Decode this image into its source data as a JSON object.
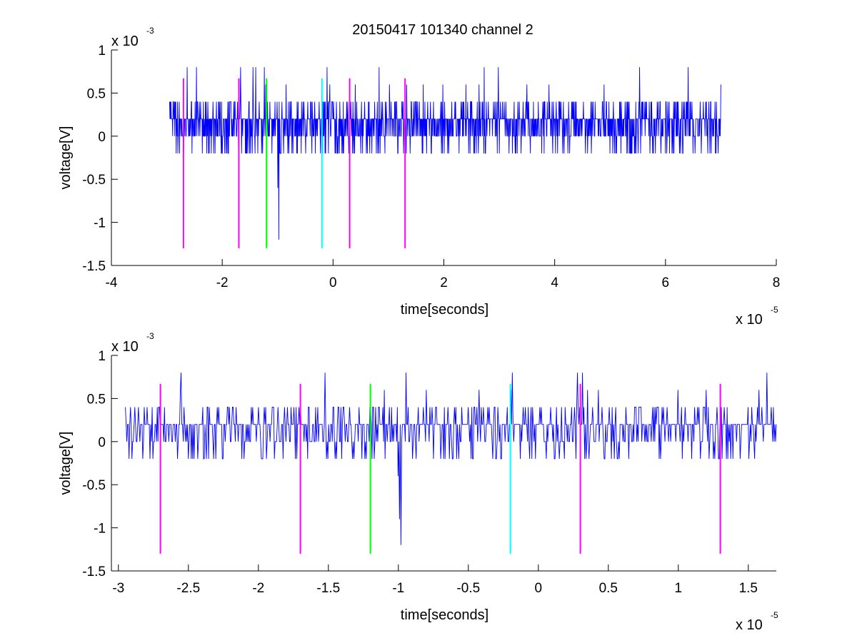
{
  "figure_title": "20150417 101340 channel 2",
  "chart_data": [
    {
      "type": "line",
      "title": "20150417 101340 channel 2",
      "xlabel": "time[seconds]",
      "ylabel": "voltage[V]",
      "x_exponent_label": {
        "base": "x 10",
        "exp": "-5"
      },
      "y_exponent_label": {
        "base": "x 10",
        "exp": "-3"
      },
      "x_ticks": [
        "-4",
        "-2",
        "0",
        "2",
        "4",
        "6",
        "8"
      ],
      "y_ticks": [
        "1",
        "0.5",
        "0",
        "-0.5",
        "-1",
        "-1.5"
      ],
      "xlim": [
        -4e-05,
        8e-05
      ],
      "ylim": [
        -0.0015,
        0.001
      ],
      "grid": false,
      "signal": {
        "color": "#0000ff",
        "x_start": -2.95e-05,
        "x_end": 7e-05,
        "baseline": 0.0002,
        "levels": [
          -0.0002,
          0,
          0.0002,
          0.0004,
          0.0006
        ],
        "spikes": [
          {
            "x": -1.2e-05,
            "y": 0.0006
          },
          {
            "x": -1e-05,
            "y": -0.0006
          },
          {
            "x": -9.8e-06,
            "y": -0.0012
          },
          {
            "x": -8.5e-06,
            "y": 0.0006
          },
          {
            "x": 2.4e-05,
            "y": 0.0006
          },
          {
            "x": 7e-05,
            "y": 0.0006
          }
        ]
      },
      "markers": [
        {
          "x": -2.7e-05,
          "color": "#ff00ff",
          "y_from": -0.0013,
          "y_to": 0.00067
        },
        {
          "x": -1.7e-05,
          "color": "#ff00ff",
          "y_from": -0.0013,
          "y_to": 0.00067
        },
        {
          "x": -1.2e-05,
          "color": "#00ff00",
          "y_from": -0.0013,
          "y_to": 0.00067
        },
        {
          "x": -2e-06,
          "color": "#00ffff",
          "y_from": -0.0013,
          "y_to": 0.00067
        },
        {
          "x": 3e-06,
          "color": "#ff00ff",
          "y_from": -0.0013,
          "y_to": 0.00067
        },
        {
          "x": 1.3e-05,
          "color": "#ff00ff",
          "y_from": -0.0013,
          "y_to": 0.00067
        }
      ]
    },
    {
      "type": "line",
      "title": "",
      "xlabel": "time[seconds]",
      "ylabel": "voltage[V]",
      "x_exponent_label": {
        "base": "x 10",
        "exp": "-5"
      },
      "y_exponent_label": {
        "base": "x 10",
        "exp": "-3"
      },
      "x_ticks": [
        "-3",
        "-2.5",
        "-2",
        "-1.5",
        "-1",
        "-0.5",
        "0",
        "0.5",
        "1",
        "1.5"
      ],
      "y_ticks": [
        "1",
        "0.5",
        "0",
        "-0.5",
        "-1",
        "-1.5"
      ],
      "xlim": [
        -3.05e-05,
        1.7e-05
      ],
      "ylim": [
        -0.0015,
        0.001
      ],
      "grid": false,
      "signal": {
        "color": "#0000ff",
        "x_start": -2.95e-05,
        "x_end": 1.7e-05,
        "baseline": 0.0002,
        "levels": [
          -0.0002,
          0,
          0.0002,
          0.0004,
          0.0006
        ],
        "spikes": [
          {
            "x": -1.2e-05,
            "y": 0.0004
          },
          {
            "x": -1.1e-05,
            "y": 0.0006
          },
          {
            "x": -1e-05,
            "y": -0.0004
          },
          {
            "x": -9.9e-06,
            "y": -0.0009
          },
          {
            "x": -9.8e-06,
            "y": -0.0012
          },
          {
            "x": -8e-06,
            "y": 0.0006
          }
        ]
      },
      "markers": [
        {
          "x": -2.7e-05,
          "color": "#ff00ff",
          "y_from": -0.0013,
          "y_to": 0.00067
        },
        {
          "x": -1.7e-05,
          "color": "#ff00ff",
          "y_from": -0.0013,
          "y_to": 0.00067
        },
        {
          "x": -1.2e-05,
          "color": "#00ff00",
          "y_from": -0.0013,
          "y_to": 0.00067
        },
        {
          "x": -2e-06,
          "color": "#00ffff",
          "y_from": -0.0013,
          "y_to": 0.00067
        },
        {
          "x": 3e-06,
          "color": "#ff00ff",
          "y_from": -0.0013,
          "y_to": 0.00067
        },
        {
          "x": 1.3e-05,
          "color": "#ff00ff",
          "y_from": -0.0013,
          "y_to": 0.00067
        }
      ]
    }
  ]
}
